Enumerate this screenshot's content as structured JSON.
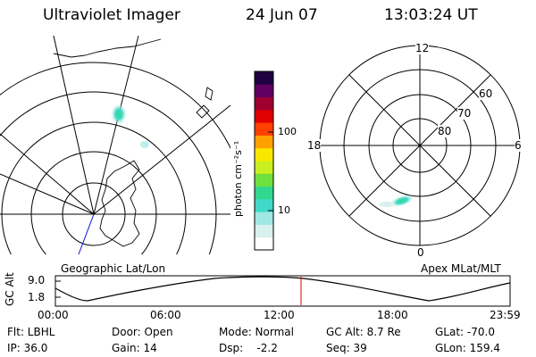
{
  "header": {
    "instrument": "Ultraviolet Imager",
    "date": "24 Jun 07",
    "time": "13:03:24 UT"
  },
  "geo_map": {
    "caption": "Geographic Lat/Lon"
  },
  "colorbar": {
    "unit_label": "photon cm⁻²s⁻¹",
    "tick_labels": [
      "100",
      "10"
    ],
    "colors": [
      "#ffffff",
      "#d8f0ee",
      "#a0e8e4",
      "#40d8c8",
      "#30d890",
      "#70e040",
      "#c8f020",
      "#f8e800",
      "#ffa000",
      "#ff4000",
      "#e00000",
      "#a00030",
      "#600060",
      "#200040"
    ]
  },
  "polar_plot": {
    "caption": "Apex MLat/MLT",
    "mlt_labels": {
      "top": "12",
      "left": "18",
      "right": "6",
      "bottom": "0"
    },
    "lat_labels": [
      "60",
      "70",
      "80"
    ]
  },
  "orbit_strip": {
    "axis_title": "GC Alt",
    "y_ticks": [
      "9.0",
      "1.8"
    ],
    "x_ticks": [
      "00:00",
      "06:00",
      "12:00",
      "18:00",
      "23:59"
    ],
    "current_time_marker_color": "#e00000"
  },
  "info": {
    "filter": "Flt: LBHL",
    "ip": "IP: 36.0",
    "door": "Door: Open",
    "gain": "Gain: 14",
    "mode": "Mode: Normal",
    "dsp": "Dsp:    -2.2",
    "gc_alt": "GC Alt: 8.7 Re",
    "seq": "Seq: 39",
    "glat": "GLat: -70.0",
    "glon": "GLon: 159.4"
  }
}
